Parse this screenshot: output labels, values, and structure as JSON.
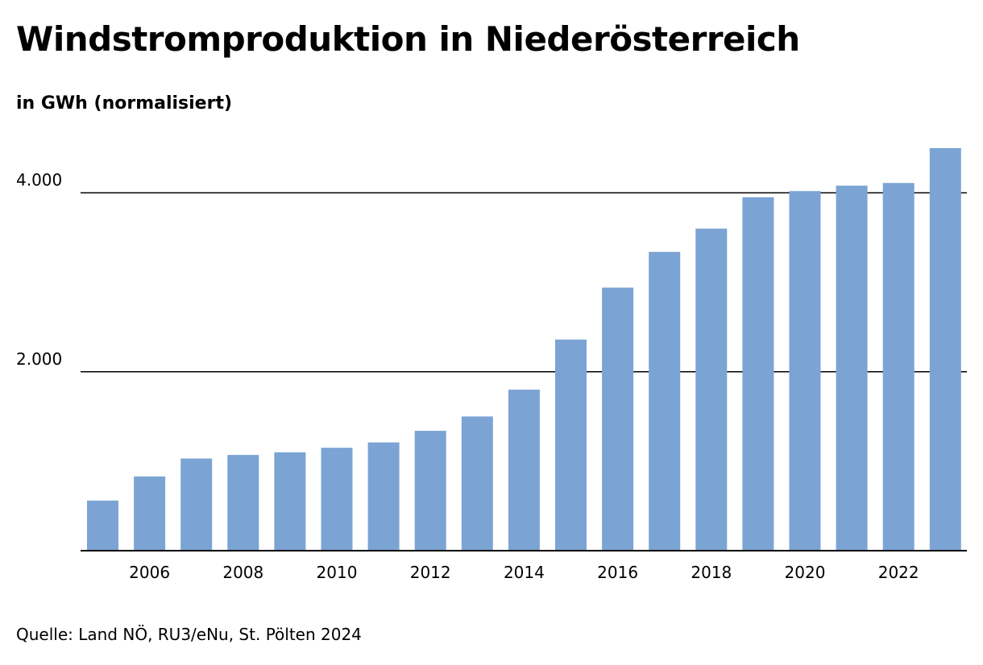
{
  "title": "Windstromproduktion in Niederösterreich",
  "subtitle": "in GWh (normalisiert)",
  "source": "Quelle: Land NÖ, RU3/eNu, St. Pölten 2024",
  "colors": {
    "bar": "#7ba4d4",
    "axis": "#000000",
    "grid": "#000000"
  },
  "chart_data": {
    "type": "bar",
    "title": "Windstromproduktion in Niederösterreich",
    "subtitle": "in GWh (normalisiert)",
    "xlabel": "",
    "ylabel": "",
    "categories": [
      2005,
      2006,
      2007,
      2008,
      2009,
      2010,
      2011,
      2012,
      2013,
      2014,
      2015,
      2016,
      2017,
      2018,
      2019,
      2020,
      2021,
      2022,
      2023
    ],
    "values": [
      560,
      830,
      1030,
      1070,
      1100,
      1150,
      1210,
      1340,
      1500,
      1800,
      2360,
      2940,
      3340,
      3600,
      3950,
      4020,
      4080,
      4110,
      4500
    ],
    "x_tick_labels": [
      "2006",
      "2008",
      "2010",
      "2012",
      "2014",
      "2016",
      "2018",
      "2020",
      "2022"
    ],
    "y_ticks": [
      2000,
      4000
    ],
    "y_tick_labels": [
      "2.000",
      "4.000"
    ],
    "ylim": [
      0,
      4800
    ],
    "grid": true
  }
}
